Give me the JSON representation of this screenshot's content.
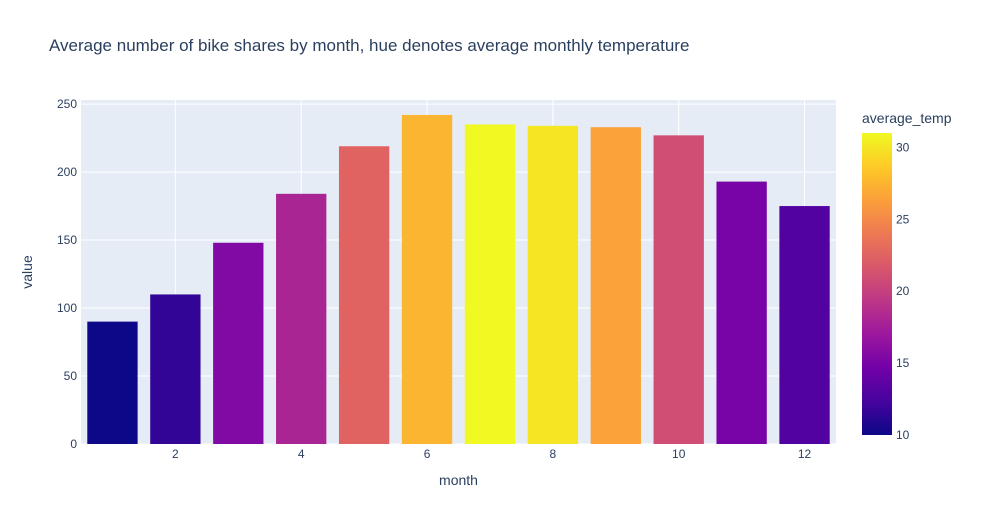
{
  "chart_data": {
    "type": "bar",
    "title": "Average number of bike shares by month, hue denotes average monthly temperature",
    "xlabel": "month",
    "ylabel": "value",
    "x": [
      1,
      2,
      3,
      4,
      5,
      6,
      7,
      8,
      9,
      10,
      11,
      12
    ],
    "values": [
      90,
      110,
      148,
      184,
      219,
      242,
      235,
      234,
      233,
      227,
      193,
      175
    ],
    "color_values": [
      10.0,
      11.5,
      15.5,
      18.0,
      22.5,
      27.5,
      31.0,
      30.0,
      26.5,
      21.0,
      15.0,
      13.0
    ],
    "x_ticks": [
      "2",
      "4",
      "6",
      "8",
      "10",
      "12"
    ],
    "y_ticks": [
      "0",
      "50",
      "100",
      "150",
      "200",
      "250"
    ],
    "ylim": [
      0,
      253
    ],
    "xlim": [
      0.5,
      12.5
    ],
    "grid": true,
    "colorbar": {
      "title": "average_temp",
      "range": [
        10,
        31
      ],
      "ticks": [
        "10",
        "15",
        "20",
        "25",
        "30"
      ],
      "colorscale": [
        "#0d0887",
        "#46039f",
        "#7201a8",
        "#9c179e",
        "#bd3786",
        "#d8576b",
        "#ed7953",
        "#fb9f3a",
        "#fdca26",
        "#f0f921"
      ]
    },
    "plot_bg": "#e5ecf6"
  }
}
